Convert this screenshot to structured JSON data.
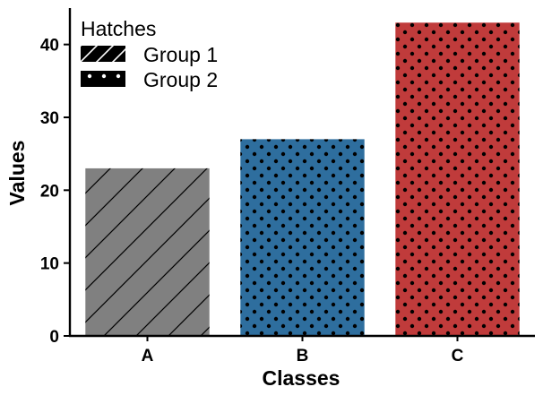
{
  "chart_data": {
    "type": "bar",
    "categories": [
      "A",
      "B",
      "C"
    ],
    "values": [
      23,
      27,
      43
    ],
    "bar_colors": [
      "#808080",
      "#2e6e9e",
      "#c03b3b"
    ],
    "bar_hatches": [
      "diagonal",
      "dots",
      "dots"
    ],
    "xlabel": "Classes",
    "ylabel": "Values",
    "ylim": [
      0,
      45
    ],
    "yticks": [
      0,
      10,
      20,
      30,
      40
    ],
    "grid": false,
    "legend": {
      "title": "Hatches",
      "placement": "top-left",
      "entries": [
        {
          "label": "Group 1",
          "hatch": "diagonal"
        },
        {
          "label": "Group 2",
          "hatch": "dots"
        }
      ]
    }
  }
}
